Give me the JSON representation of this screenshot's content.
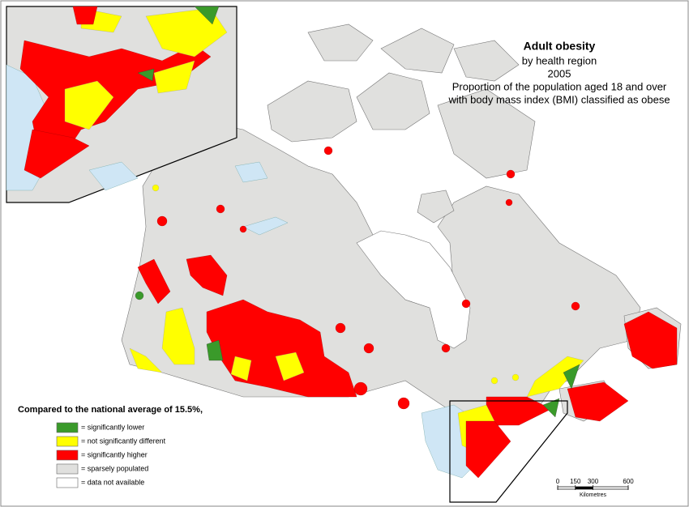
{
  "title": {
    "heading": "Adult obesity",
    "lines": [
      "by health region",
      "2005",
      "Proportion of the population aged 18 and over",
      "with body mass index (BMI) classified as obese"
    ]
  },
  "legend": {
    "heading": "Compared to the national average of 15.5%,",
    "items": [
      {
        "label": "= significantly lower",
        "color": "#3a9a2a"
      },
      {
        "label": "= not significantly different",
        "color": "#ffff00"
      },
      {
        "label": "= significantly higher",
        "color": "#ff0000"
      },
      {
        "label": "= sparsely populated",
        "color": "#e0e0de"
      },
      {
        "label": "= data not available",
        "color": "#ffffff"
      }
    ]
  },
  "scale": {
    "ticks": [
      0,
      150,
      300,
      600
    ],
    "unit": "Kilometres"
  }
}
